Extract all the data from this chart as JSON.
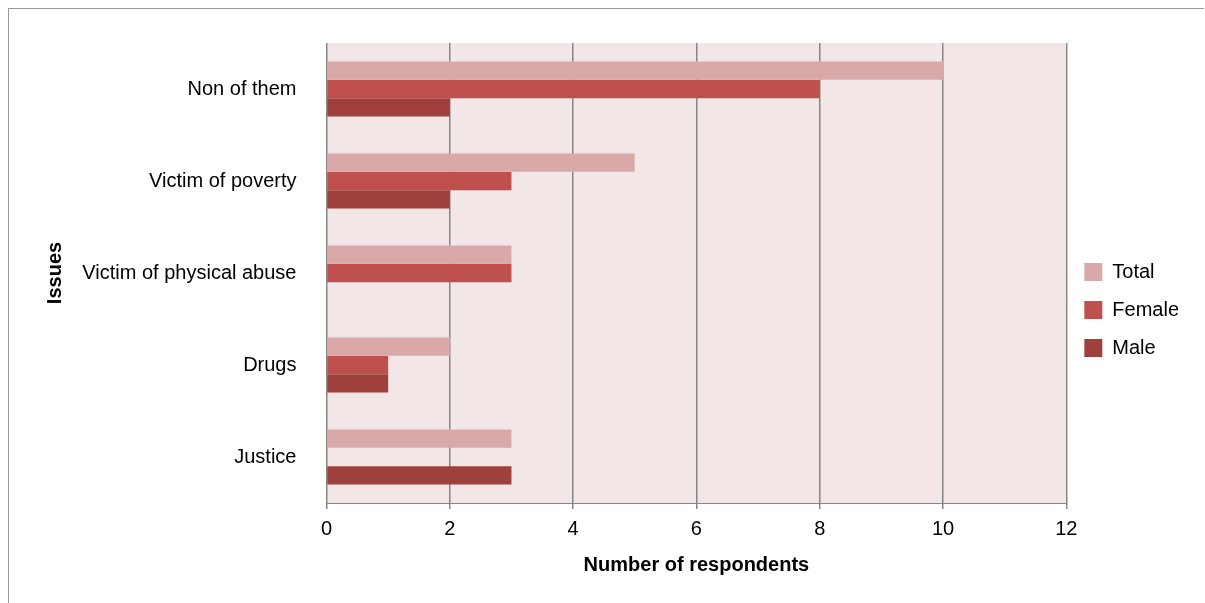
{
  "chart_data": {
    "type": "bar",
    "orientation": "horizontal",
    "xlabel": "Number of respondents",
    "ylabel": "Issues",
    "categories": [
      "Non of them",
      "Victim of poverty",
      "Victim of physical abuse",
      "Drugs",
      "Justice"
    ],
    "series": [
      {
        "name": "Total",
        "color": "#d9a9a9",
        "values": [
          10,
          5,
          3,
          2,
          3
        ]
      },
      {
        "name": "Female",
        "color": "#c0504d",
        "values": [
          8,
          3,
          3,
          1,
          null
        ]
      },
      {
        "name": "Male",
        "color": "#a0403d",
        "values": [
          2,
          2,
          null,
          1,
          3
        ]
      }
    ],
    "xlim": [
      0,
      12
    ],
    "xticks": [
      0,
      2,
      4,
      6,
      8,
      10,
      12
    ],
    "grid": "x",
    "legend": "right"
  }
}
